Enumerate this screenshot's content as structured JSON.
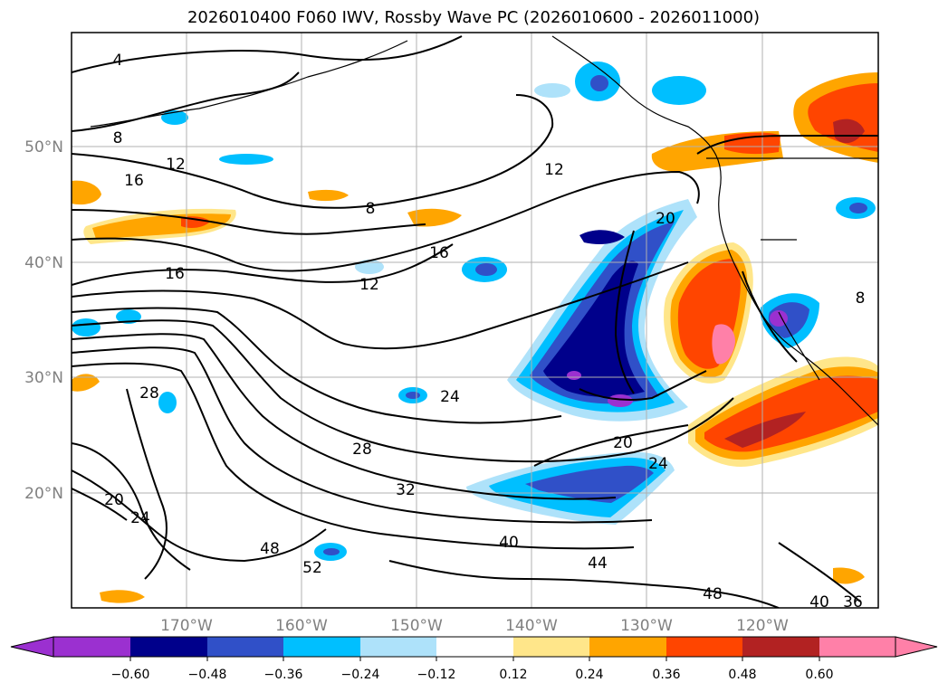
{
  "title": "2026010400 F060 IWV, Rossby Wave PC (2026010600 - 2026011000)",
  "chart_data": {
    "type": "map",
    "projection": "lat-lon",
    "lon_ticks": [
      "170°W",
      "160°W",
      "150°W",
      "140°W",
      "130°W",
      "120°W"
    ],
    "lat_ticks": [
      "50°N",
      "40°N",
      "30°N",
      "20°N"
    ],
    "colorbar": {
      "labels": [
        "−0.60",
        "−0.48",
        "−0.36",
        "−0.24",
        "−0.12",
        "0.12",
        "0.24",
        "0.36",
        "0.48",
        "0.60"
      ],
      "colors": [
        "#9b30d0",
        "#00008b",
        "#3050c8",
        "#00bfff",
        "#aee2fa",
        "#ffffff",
        "#ffe68a",
        "#ffa500",
        "#ff4500",
        "#b22222",
        "#ff80a8",
        "#ff80a8"
      ]
    },
    "contour_labels": [
      "4",
      "8",
      "12",
      "16",
      "16",
      "12",
      "8",
      "12",
      "16",
      "20",
      "24",
      "28",
      "28",
      "20",
      "24",
      "32",
      "40",
      "44",
      "48",
      "52",
      "20",
      "24",
      "48",
      "40",
      "36",
      "8"
    ]
  }
}
